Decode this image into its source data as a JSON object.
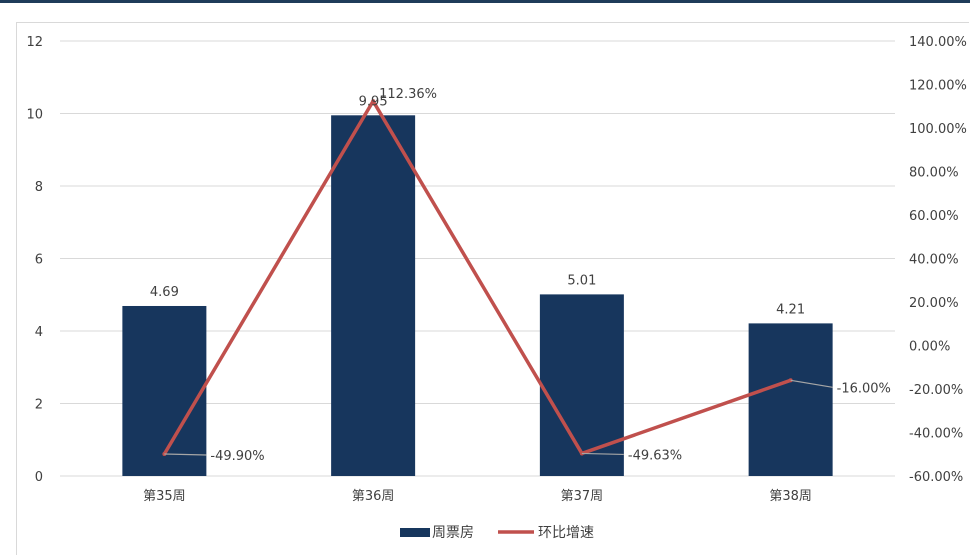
{
  "chart_data": {
    "type": "bar",
    "categories": [
      "第35周",
      "第36周",
      "第37周",
      "第38周"
    ],
    "series": [
      {
        "name": "周票房",
        "type": "bar",
        "axis": "left",
        "values": [
          4.69,
          9.95,
          5.01,
          4.21
        ],
        "labels": [
          "4.69",
          "9.95",
          "5.01",
          "4.21"
        ]
      },
      {
        "name": "环比增速",
        "type": "line",
        "axis": "right",
        "values": [
          -49.9,
          112.36,
          -49.63,
          -16.0
        ],
        "labels": [
          "-49.90%",
          "112.36%",
          "-49.63%",
          "-16.00%"
        ]
      }
    ],
    "y_left": {
      "min": 0,
      "max": 12,
      "step": 2,
      "ticks": [
        "0",
        "2",
        "4",
        "6",
        "8",
        "10",
        "12"
      ]
    },
    "y_right": {
      "min": -60,
      "max": 140,
      "step": 20,
      "ticks": [
        "-60.00%",
        "-40.00%",
        "-20.00%",
        "0.00%",
        "20.00%",
        "40.00%",
        "60.00%",
        "80.00%",
        "100.00%",
        "120.00%",
        "140.00%"
      ]
    },
    "grid": true,
    "legend_position": "bottom",
    "colors": {
      "bar": "#17365d",
      "line": "#c0504d",
      "grid": "#d9d9d9",
      "text": "#404040",
      "leader": "#a6a6a6"
    }
  }
}
